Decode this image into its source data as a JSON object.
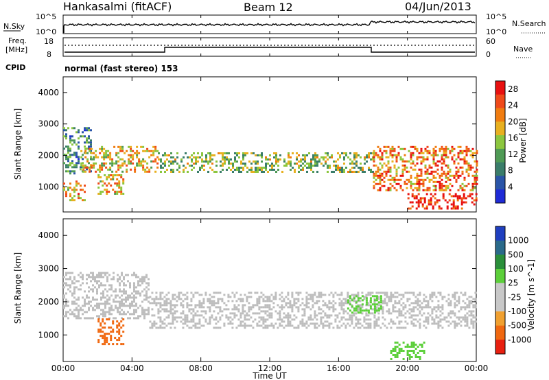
{
  "header": {
    "station": "Hankasalmi (fitACF)",
    "beam": "Beam 12",
    "date": "04/Jun/2013"
  },
  "noise_panel": {
    "left_label": "N.Sky",
    "left_ticks": [
      "10^5",
      "10^0"
    ],
    "right_label": "N.Search",
    "right_ticks": [
      "10^5",
      "10^0"
    ]
  },
  "freq_panel": {
    "left_label_1": "Freq.",
    "left_label_2": "[MHz]",
    "left_ticks": [
      "18",
      "8"
    ],
    "right_label": "Nave",
    "right_ticks": [
      "60",
      "0"
    ],
    "cpid_label": "CPID",
    "cpid_text": "normal (fast stereo) 153"
  },
  "colors": {
    "power_scale": [
      "#1f2bd6",
      "#2a55a8",
      "#3a7d6a",
      "#4f9a55",
      "#8cc63f",
      "#e8b020",
      "#f07c10",
      "#ef4a1a",
      "#e81010"
    ],
    "velocity_scale": [
      "#1f3fbf",
      "#2a6a8a",
      "#2a8f3a",
      "#5ccf3a",
      "#c8c8c8",
      "#c8c8c8",
      "#f0a030",
      "#f06810",
      "#e82010"
    ],
    "ground_scatter": "#bdbdbd"
  },
  "chart_data": [
    {
      "type": "heatmap",
      "panel": "power",
      "ylabel": "Slant Range [km]",
      "yticks": [
        "1000",
        "2000",
        "3000",
        "4000"
      ],
      "ylim": [
        200,
        4500
      ],
      "xlim": [
        0,
        24
      ],
      "colorbar": {
        "label": "Power [dB]",
        "ticks": [
          "4",
          "8",
          "12",
          "16",
          "20",
          "24",
          "28"
        ],
        "range": [
          0,
          30
        ]
      },
      "features": [
        {
          "t": [
            0.0,
            1.6
          ],
          "range_km": [
            1400,
            2900
          ],
          "value_db": 10
        },
        {
          "t": [
            0.0,
            1.2
          ],
          "range_km": [
            600,
            1200
          ],
          "value_db": 20
        },
        {
          "t": [
            1.0,
            5.5
          ],
          "range_km": [
            1500,
            2300
          ],
          "value_db": 18
        },
        {
          "t": [
            2.0,
            3.5
          ],
          "range_km": [
            800,
            1400
          ],
          "value_db": 20
        },
        {
          "t": [
            5.5,
            18.0
          ],
          "range_km": [
            1500,
            2100
          ],
          "value_db": 14
        },
        {
          "t": [
            18.0,
            24.0
          ],
          "range_km": [
            900,
            2300
          ],
          "value_db": 22
        },
        {
          "t": [
            20.0,
            24.0
          ],
          "range_km": [
            300,
            800
          ],
          "value_db": 28
        }
      ]
    },
    {
      "type": "heatmap",
      "panel": "velocity",
      "ylabel": "Slant Range [km]",
      "yticks": [
        "1000",
        "2000",
        "3000",
        "4000"
      ],
      "ylim": [
        200,
        4500
      ],
      "xlim": [
        0,
        24
      ],
      "xticks": [
        "00:00",
        "04:00",
        "08:00",
        "12:00",
        "16:00",
        "20:00",
        "00:00"
      ],
      "xlabel": "Time UT",
      "colorbar": {
        "label": "Velocity [m s^-1]",
        "ticks": [
          "1000",
          "500",
          "100",
          "25",
          "-25",
          "-100",
          "-500",
          "-1000"
        ]
      },
      "features": [
        {
          "t": [
            0.0,
            5.0
          ],
          "range_km": [
            1500,
            2900
          ],
          "value_ms": 0
        },
        {
          "t": [
            2.0,
            3.5
          ],
          "range_km": [
            700,
            1500
          ],
          "value_ms": -300
        },
        {
          "t": [
            5.0,
            24.0
          ],
          "range_km": [
            1200,
            2300
          ],
          "value_ms": 0
        },
        {
          "t": [
            16.5,
            18.5
          ],
          "range_km": [
            1700,
            2200
          ],
          "value_ms": 150
        },
        {
          "t": [
            19.0,
            21.0
          ],
          "range_km": [
            300,
            800
          ],
          "value_ms": 150
        }
      ]
    }
  ]
}
